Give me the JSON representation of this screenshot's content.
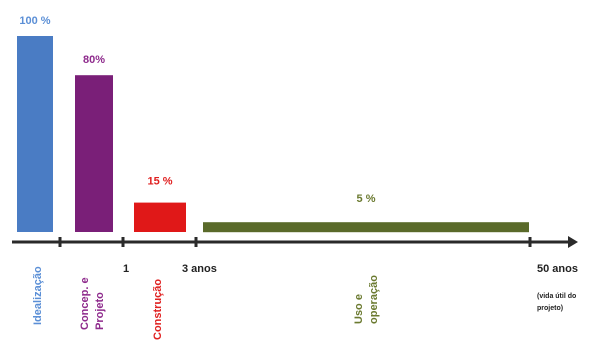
{
  "chart_data": {
    "type": "bar",
    "title": "",
    "xlabel": "",
    "ylabel": "",
    "ylim": [
      0,
      100
    ],
    "bars": [
      {
        "category": "Idealização",
        "value": 100,
        "value_label": "100 %",
        "color": "#4a7cc4",
        "label_color": "#5b8fd6"
      },
      {
        "category": "Concep. e Projeto",
        "value": 80,
        "value_label": "80%",
        "color": "#7a1f78",
        "label_color": "#8e2a8c"
      },
      {
        "category": "Construção",
        "value": 15,
        "value_label": "15 %",
        "color": "#e01818",
        "label_color": "#e02020"
      },
      {
        "category": "Uso e operação",
        "value": 5,
        "value_label": "5 %",
        "color": "#5a6a2a",
        "label_color": "#6b7a30"
      }
    ],
    "ticks": [
      "1",
      "3 anos",
      "50 anos"
    ],
    "note": "(vida útil do projeto)"
  }
}
